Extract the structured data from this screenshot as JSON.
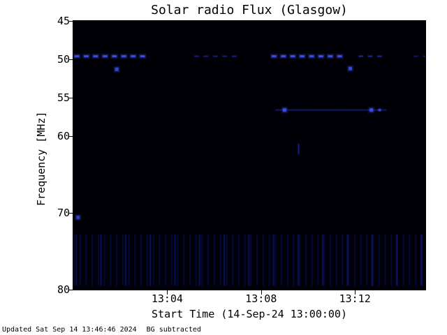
{
  "footer": {
    "updated": "Updated Sat Sep 14 13:46:46 2024",
    "note": "BG subtracted"
  },
  "chart_data": {
    "type": "heatmap",
    "title": "Solar radio Flux (Glasgow)",
    "xlabel": "Start Time (14-Sep-24 13:00:00)",
    "ylabel": "Frequency [MHz]",
    "station": "Glasgow",
    "start_time": "14-Sep-24 13:00:00",
    "x_tick_labels": [
      "13:04",
      "13:08",
      "13:12"
    ],
    "x_tick_minutes": [
      4,
      8,
      12
    ],
    "y_tick_labels": [
      "45",
      "50",
      "55",
      "60",
      "70",
      "80"
    ],
    "y_tick_values": [
      45,
      50,
      55,
      60,
      70,
      80
    ],
    "t_range_minutes": [
      0,
      15
    ],
    "f_range_mhz": [
      45,
      80
    ],
    "y_axis_inverted": true,
    "grid": false,
    "legend": false,
    "background_color": "#000006",
    "feature_color": "#3c50ff",
    "features": [
      {
        "kind": "dash_row",
        "freq": 49.6,
        "t0": 0.05,
        "t1": 3.15,
        "period": 0.4,
        "duty": 0.5,
        "thickness": 3,
        "color": "#4254ff",
        "alpha": 0.95,
        "glow": true
      },
      {
        "kind": "dash_row",
        "freq": 49.6,
        "t0": 5.15,
        "t1": 7.05,
        "period": 0.4,
        "duty": 0.5,
        "thickness": 2,
        "color": "#2838c8",
        "alpha": 0.65
      },
      {
        "kind": "dash_row",
        "freq": 49.6,
        "t0": 8.45,
        "t1": 11.6,
        "period": 0.4,
        "duty": 0.5,
        "thickness": 3,
        "color": "#4254ff",
        "alpha": 0.95,
        "glow": true
      },
      {
        "kind": "dash_row",
        "freq": 49.6,
        "t0": 12.15,
        "t1": 13.2,
        "period": 0.4,
        "duty": 0.5,
        "thickness": 2,
        "color": "#3040d8",
        "alpha": 0.75
      },
      {
        "kind": "dash_row",
        "freq": 49.6,
        "t0": 14.5,
        "t1": 14.95,
        "period": 0.4,
        "duty": 0.5,
        "thickness": 2,
        "color": "#2838c8",
        "alpha": 0.5
      },
      {
        "kind": "dot",
        "freq": 51.3,
        "t": 1.85,
        "size": 5,
        "color": "#3a4cf0",
        "alpha": 0.95,
        "glow": true
      },
      {
        "kind": "dot",
        "freq": 51.2,
        "t": 11.8,
        "size": 5,
        "color": "#3a4cf0",
        "alpha": 0.95,
        "glow": true
      },
      {
        "kind": "hline",
        "freq": 56.6,
        "t0": 8.6,
        "t1": 13.35,
        "thickness": 2,
        "color": "#2434d0",
        "alpha": 0.5
      },
      {
        "kind": "dot",
        "freq": 56.6,
        "t": 9.0,
        "size": 5,
        "color": "#4054ff",
        "alpha": 0.9,
        "glow": true
      },
      {
        "kind": "dot",
        "freq": 56.6,
        "t": 12.7,
        "size": 5,
        "color": "#4054ff",
        "alpha": 0.9,
        "glow": true
      },
      {
        "kind": "dot",
        "freq": 56.6,
        "t": 13.05,
        "size": 4,
        "color": "#4054ff",
        "alpha": 0.8
      },
      {
        "kind": "vtick",
        "t": 9.6,
        "f0": 61.0,
        "f1": 62.4,
        "thickness": 2,
        "color": "#2030c8",
        "alpha": 0.7
      },
      {
        "kind": "dot",
        "freq": 70.6,
        "t": 0.2,
        "size": 5,
        "color": "#3646e0",
        "alpha": 0.9,
        "glow": true
      },
      {
        "kind": "stripe_band",
        "f0": 72.8,
        "f1": 79.5,
        "t0": 0,
        "t1": 15,
        "period": 0.26,
        "thickness": 2,
        "color": "#1420b4",
        "alpha": 0.3
      },
      {
        "kind": "stripe_band",
        "f0": 72.8,
        "f1": 79.5,
        "t0": 0.1,
        "t1": 15,
        "period": 1.05,
        "thickness": 2,
        "color": "#1c2cd0",
        "alpha": 0.4
      },
      {
        "kind": "stripe_band",
        "f0": 45,
        "f1": 80,
        "t0": 0,
        "t1": 15,
        "period": 0.26,
        "thickness": 1,
        "color": "#2030c0",
        "alpha": 0.05
      }
    ]
  }
}
